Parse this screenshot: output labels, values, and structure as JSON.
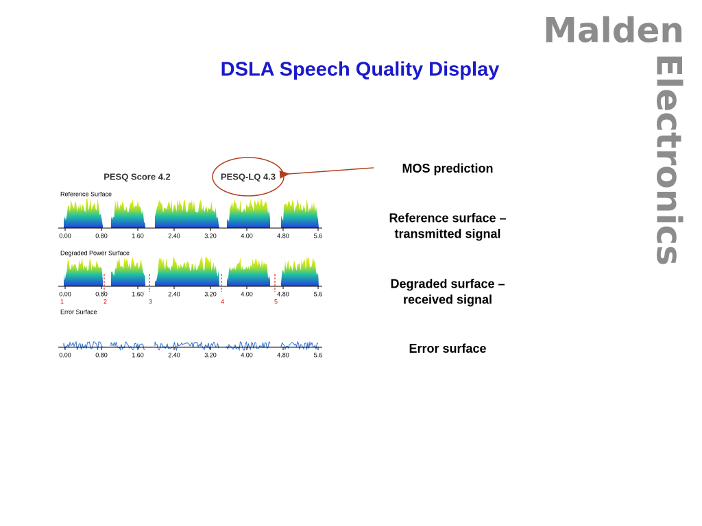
{
  "logo": {
    "line1": "Malden",
    "line2": "Electronics"
  },
  "title": "DSLA Speech Quality Display",
  "figure": {
    "scores": [
      "PESQ Score 4.2",
      "PESQ-LQ 4.3"
    ],
    "panels": [
      {
        "title": "Reference Surface",
        "ticks": [
          "0.00",
          "0.80",
          "1.60",
          "2.40",
          "3.20",
          "4.00",
          "4.80",
          "5.6"
        ]
      },
      {
        "title": "Degraded Power Surface",
        "ticks": [
          "0.00",
          "0.80",
          "1.60",
          "2.40",
          "3.20",
          "4.00",
          "4.80",
          "5.6"
        ],
        "markers": [
          "1",
          "2",
          "3",
          "4",
          "5"
        ]
      },
      {
        "title": "Error Surface",
        "ticks": [
          "0.00",
          "0.80",
          "1.60",
          "2.40",
          "3.20",
          "4.00",
          "4.80",
          "5.6"
        ]
      }
    ]
  },
  "annotations": [
    {
      "lines": [
        "MOS prediction"
      ]
    },
    {
      "lines": [
        "Reference surface –",
        "transmitted signal"
      ]
    },
    {
      "lines": [
        "Degraded surface –",
        "received signal"
      ]
    },
    {
      "lines": [
        "Error surface"
      ]
    }
  ]
}
